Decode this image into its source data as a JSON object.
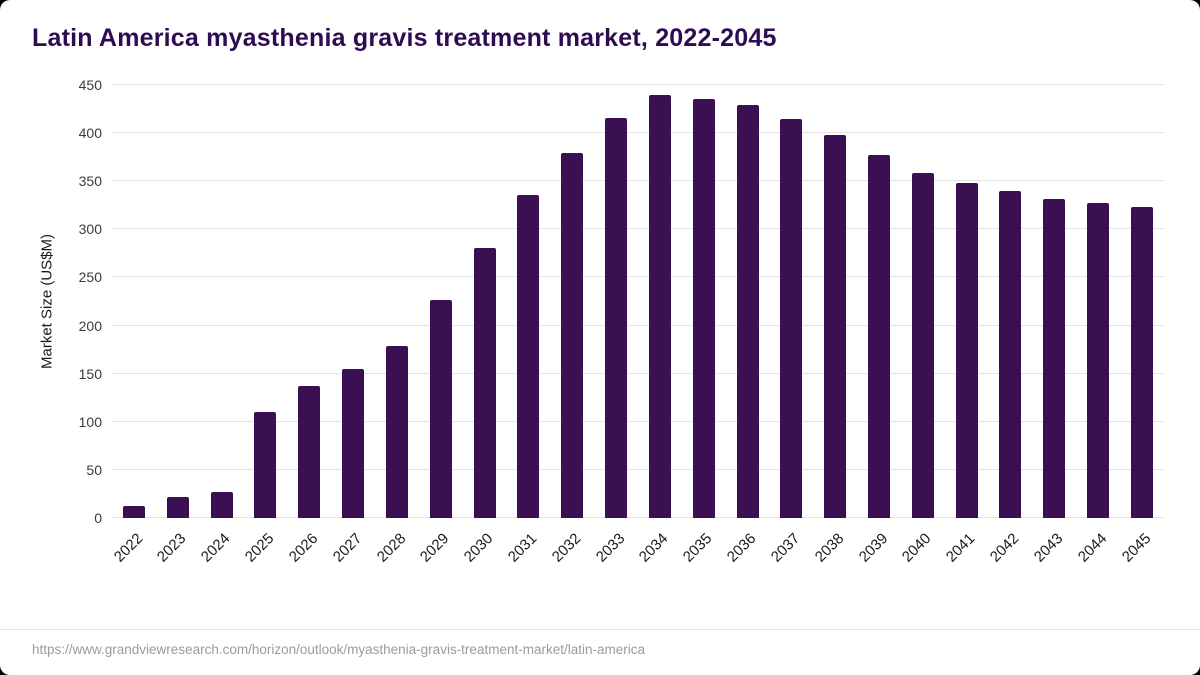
{
  "page": {
    "title": "Latin America myasthenia gravis treatment market, 2022-2045",
    "source_url": "https://www.grandviewresearch.com/horizon/outlook/myasthenia-gravis-treatment-market/latin-america"
  },
  "chart_data": {
    "type": "bar",
    "title": "Latin America myasthenia gravis treatment market, 2022-2045",
    "xlabel": "",
    "ylabel": "Market Size (US$M)",
    "ylim": [
      0,
      450
    ],
    "yticks": [
      0,
      50,
      100,
      150,
      200,
      250,
      300,
      350,
      400,
      450
    ],
    "grid": true,
    "legend": "none",
    "bar_color": "#3b1053",
    "categories": [
      "2022",
      "2023",
      "2024",
      "2025",
      "2026",
      "2027",
      "2028",
      "2029",
      "2030",
      "2031",
      "2032",
      "2033",
      "2034",
      "2035",
      "2036",
      "2037",
      "2038",
      "2039",
      "2040",
      "2041",
      "2042",
      "2043",
      "2044",
      "2045"
    ],
    "values": [
      12,
      22,
      27,
      110,
      137,
      155,
      179,
      227,
      281,
      336,
      379,
      416,
      440,
      435,
      429,
      415,
      398,
      377,
      359,
      348,
      340,
      332,
      327,
      323
    ]
  }
}
